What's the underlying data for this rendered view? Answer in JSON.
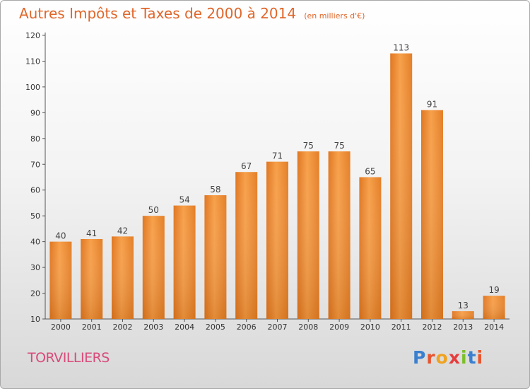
{
  "title": "Autres Impôts et Taxes de 2000 à 2014",
  "subtitle": "(en milliers d'€)",
  "commune": "TORVILLIERS",
  "logo": {
    "letters": [
      "P",
      "r",
      "o",
      "x",
      "i",
      "t",
      "i"
    ],
    "colors": [
      "#3a7fd0",
      "#e8552e",
      "#f0a31f",
      "#e63c3c",
      "#7bbf2a",
      "#3a7fd0",
      "#e8552e"
    ]
  },
  "chart_data": {
    "type": "bar",
    "categories": [
      "2000",
      "2001",
      "2002",
      "2003",
      "2004",
      "2005",
      "2006",
      "2007",
      "2008",
      "2009",
      "2010",
      "2011",
      "2012",
      "2013",
      "2014"
    ],
    "values": [
      40,
      41,
      42,
      50,
      54,
      58,
      67,
      71,
      75,
      75,
      65,
      113,
      91,
      13,
      19
    ],
    "ylim": [
      10,
      120
    ],
    "yticks": [
      10,
      20,
      30,
      40,
      50,
      60,
      70,
      80,
      90,
      100,
      110,
      120
    ],
    "grid": false,
    "bar_color": "#f0892e"
  }
}
